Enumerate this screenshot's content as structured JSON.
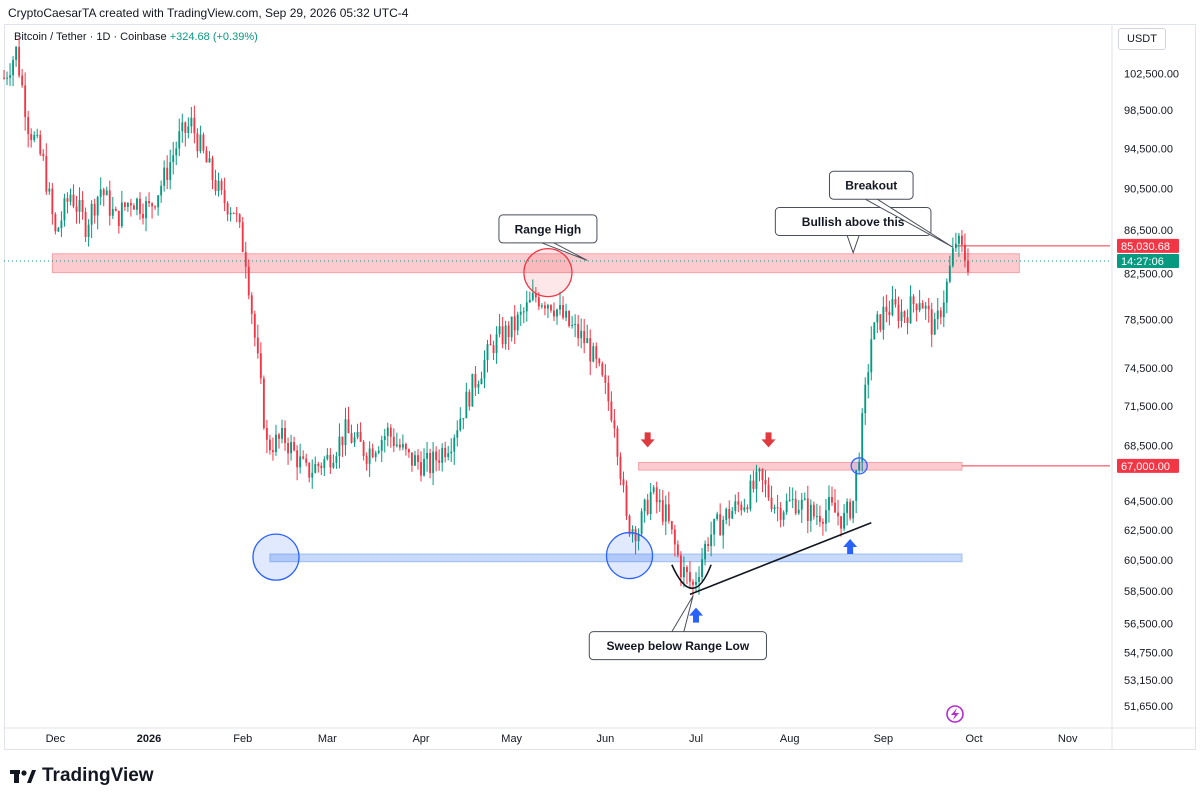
{
  "header": {
    "attribution": "CryptoCaesarTA created with TradingView.com, Sep 29, 2026 05:32 UTC-4",
    "symbol": "Bitcoin / Tether · 1D · Coinbase",
    "change": "+324.68 (+0.39%)",
    "currency": "USDT"
  },
  "branding": {
    "logo_text": "TradingView"
  },
  "colors": {
    "up": "#089981",
    "down": "#f23645",
    "resistance_zone": "#f7a1a7",
    "support_zone": "#9bbcf4",
    "marker_blue": "#2962ff",
    "marker_red": "#e03a3e"
  },
  "chart_data": {
    "type": "candlestick",
    "title": "",
    "xlabel": "",
    "ylabel": "",
    "y_scale": "log",
    "ylim": [
      50500,
      108000
    ],
    "xlim": [
      "2025-11-14",
      "2026-11-15"
    ],
    "y_ticks": [
      "102,500.00",
      "98,500.00",
      "94,500.00",
      "90,500.00",
      "86,500.00",
      "82,500.00",
      "78,500.00",
      "74,500.00",
      "71,500.00",
      "68,500.00",
      "64,500.00",
      "62,500.00",
      "60,500.00",
      "58,500.00",
      "56,500.00",
      "54,750.00",
      "53,150.00",
      "51,650.00"
    ],
    "x_ticks": [
      {
        "label": "Dec",
        "date": "2025-12-01",
        "bold": false
      },
      {
        "label": "2026",
        "date": "2026-01-01",
        "bold": true
      },
      {
        "label": "Feb",
        "date": "2026-02-01",
        "bold": false
      },
      {
        "label": "Mar",
        "date": "2026-03-01",
        "bold": false
      },
      {
        "label": "Apr",
        "date": "2026-04-01",
        "bold": false
      },
      {
        "label": "May",
        "date": "2026-05-01",
        "bold": false
      },
      {
        "label": "Jun",
        "date": "2026-06-01",
        "bold": false
      },
      {
        "label": "Jul",
        "date": "2026-07-01",
        "bold": false
      },
      {
        "label": "Aug",
        "date": "2026-08-01",
        "bold": false
      },
      {
        "label": "Sep",
        "date": "2026-09-01",
        "bold": false
      },
      {
        "label": "Oct",
        "date": "2026-10-01",
        "bold": false
      },
      {
        "label": "Nov",
        "date": "2026-11-01",
        "bold": false
      }
    ],
    "price_path": [
      [
        "2025-11-14",
        102000
      ],
      [
        "2025-11-18",
        105000
      ],
      [
        "2025-11-22",
        97000
      ],
      [
        "2025-11-27",
        93000
      ],
      [
        "2025-12-01",
        86000
      ],
      [
        "2025-12-06",
        90000
      ],
      [
        "2025-12-11",
        87000
      ],
      [
        "2025-12-16",
        90500
      ],
      [
        "2025-12-21",
        87500
      ],
      [
        "2025-12-26",
        89500
      ],
      [
        "2026-01-01",
        88500
      ],
      [
        "2026-01-06",
        91500
      ],
      [
        "2026-01-11",
        95500
      ],
      [
        "2026-01-15",
        97000
      ],
      [
        "2026-01-20",
        93000
      ],
      [
        "2026-01-25",
        89500
      ],
      [
        "2026-01-29",
        88500
      ],
      [
        "2026-02-02",
        84000
      ],
      [
        "2026-02-05",
        77000
      ],
      [
        "2026-02-09",
        68500
      ],
      [
        "2026-02-15",
        69000
      ],
      [
        "2026-02-22",
        66500
      ],
      [
        "2026-03-01",
        67500
      ],
      [
        "2026-03-07",
        69500
      ],
      [
        "2026-03-14",
        68000
      ],
      [
        "2026-03-21",
        69500
      ],
      [
        "2026-03-28",
        67500
      ],
      [
        "2026-04-04",
        67000
      ],
      [
        "2026-04-11",
        69000
      ],
      [
        "2026-04-18",
        73000
      ],
      [
        "2026-04-25",
        76500
      ],
      [
        "2026-05-02",
        78000
      ],
      [
        "2026-05-09",
        80500
      ],
      [
        "2026-05-14",
        80000
      ],
      [
        "2026-05-20",
        78000
      ],
      [
        "2026-05-26",
        76500
      ],
      [
        "2026-05-30",
        74000
      ],
      [
        "2026-06-04",
        70500
      ],
      [
        "2026-06-08",
        63000
      ],
      [
        "2026-06-12",
        62500
      ],
      [
        "2026-06-16",
        65000
      ],
      [
        "2026-06-21",
        63500
      ],
      [
        "2026-06-26",
        60000
      ],
      [
        "2026-06-30",
        58800
      ],
      [
        "2026-07-05",
        62000
      ],
      [
        "2026-07-11",
        63500
      ],
      [
        "2026-07-17",
        64500
      ],
      [
        "2026-07-22",
        66000
      ],
      [
        "2026-07-28",
        64000
      ],
      [
        "2026-08-03",
        64500
      ],
      [
        "2026-08-09",
        63500
      ],
      [
        "2026-08-14",
        64000
      ],
      [
        "2026-08-19",
        63200
      ],
      [
        "2026-08-22",
        64500
      ],
      [
        "2026-08-25",
        70000
      ],
      [
        "2026-08-28",
        77000
      ],
      [
        "2026-09-02",
        79500
      ],
      [
        "2026-09-08",
        79000
      ],
      [
        "2026-09-13",
        80500
      ],
      [
        "2026-09-18",
        77500
      ],
      [
        "2026-09-22",
        81500
      ],
      [
        "2026-09-25",
        85500
      ],
      [
        "2026-09-27",
        84500
      ],
      [
        "2026-09-29",
        83500
      ]
    ],
    "zones": [
      {
        "name": "range-high-zone",
        "y_from": 82600,
        "y_to": 84300,
        "x_from": "2025-11-30",
        "x_to": "2026-10-16",
        "color": "#f7a1a7"
      },
      {
        "name": "range-low-zone",
        "y_from": 60400,
        "y_to": 60900,
        "x_from": "2026-02-10",
        "x_to": "2026-09-27",
        "color": "#9bbcf4"
      },
      {
        "name": "resistance-zone-67k",
        "y_from": 66700,
        "y_to": 67250,
        "x_from": "2026-06-12",
        "x_to": "2026-09-27",
        "color": "#f7a1a7"
      }
    ],
    "horizontal_lines": [
      {
        "name": "line-85030",
        "y": 85030.68,
        "x_from": "2026-09-25",
        "color": "#f23645"
      },
      {
        "name": "line-67000",
        "y": 67000,
        "x_from": "2026-09-27",
        "color": "#f23645"
      }
    ],
    "price_labels": [
      {
        "name": "price-label-85030",
        "text": "85,030.68",
        "y": 85030.68,
        "color": "#f23645"
      },
      {
        "name": "price-label-countdown",
        "text": "14:27:06",
        "y": 83650,
        "color": "#089981"
      },
      {
        "name": "price-label-67000",
        "text": "67,000.00",
        "y": 67000,
        "color": "#f23645"
      }
    ],
    "circles": [
      {
        "name": "circle-range-high-touch",
        "date": "2026-05-13",
        "y": 82600,
        "color": "#f23645"
      },
      {
        "name": "circle-range-low-feb",
        "date": "2026-02-12",
        "y": 60700,
        "color": "#2962ff"
      },
      {
        "name": "circle-range-low-jun",
        "date": "2026-06-09",
        "y": 60800,
        "color": "#2962ff"
      },
      {
        "name": "circle-breakout-67k",
        "date": "2026-08-24",
        "y": 67000,
        "color": "#2962ff"
      }
    ],
    "trendline": {
      "from": {
        "date": "2026-06-29",
        "y": 58300
      },
      "to": {
        "date": "2026-08-28",
        "y": 63000
      }
    },
    "arrows": [
      {
        "name": "arrow-down-1",
        "date": "2026-06-15",
        "y": 68800,
        "dir": "down",
        "color": "#e03a3e"
      },
      {
        "name": "arrow-down-2",
        "date": "2026-07-25",
        "y": 68800,
        "dir": "down",
        "color": "#e03a3e"
      },
      {
        "name": "arrow-up-1",
        "date": "2026-07-01",
        "y": 57100,
        "dir": "up",
        "color": "#2962ff"
      },
      {
        "name": "arrow-up-2",
        "date": "2026-08-21",
        "y": 61500,
        "dir": "up",
        "color": "#2962ff"
      }
    ],
    "annotations": [
      {
        "name": "callout-range-high",
        "text": "Range High",
        "date": "2026-05-13",
        "y": 86600,
        "tip_date": "2026-05-26",
        "tip_y": 83700
      },
      {
        "name": "callout-bullish-above",
        "text": "Bullish above this",
        "date": "2026-08-22",
        "y": 87300,
        "tip_date": "2026-08-22",
        "tip_y": 84400
      },
      {
        "name": "callout-breakout",
        "text": "Breakout",
        "date": "2026-08-28",
        "y": 90800,
        "tip_date": "2026-09-24",
        "tip_y": 84900
      },
      {
        "name": "callout-sweep",
        "text": "Sweep below Range Low",
        "date": "2026-06-25",
        "y": 55150,
        "tip_date": "2026-06-30",
        "tip_y": 58200
      }
    ]
  }
}
